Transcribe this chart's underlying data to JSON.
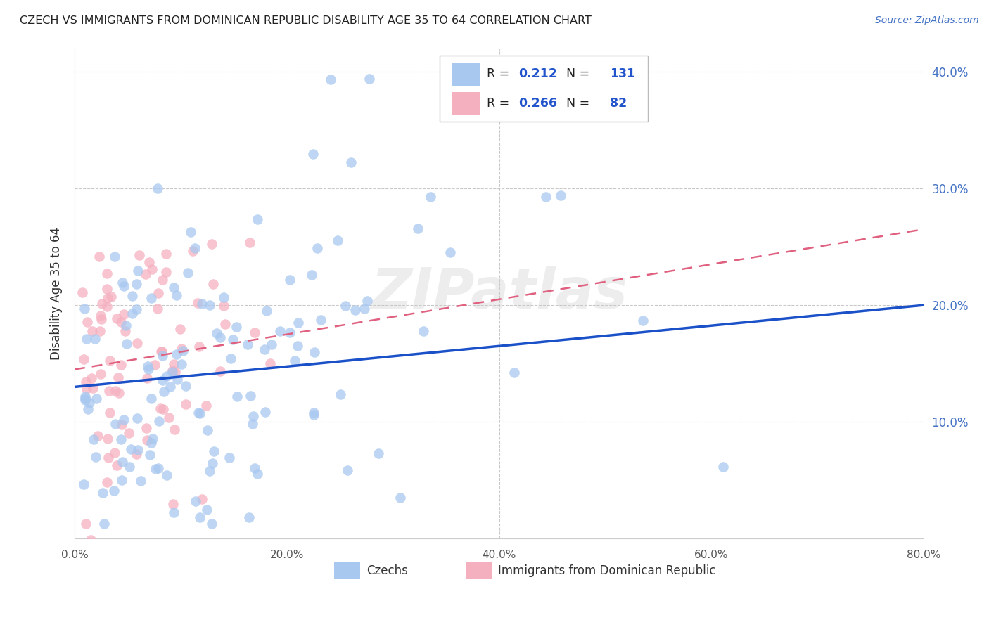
{
  "title": "CZECH VS IMMIGRANTS FROM DOMINICAN REPUBLIC DISABILITY AGE 35 TO 64 CORRELATION CHART",
  "source": "Source: ZipAtlas.com",
  "ylabel": "Disability Age 35 to 64",
  "xlim": [
    0.0,
    0.8
  ],
  "ylim": [
    0.0,
    0.42
  ],
  "xticks": [
    0.0,
    0.2,
    0.4,
    0.6,
    0.8
  ],
  "yticks": [
    0.1,
    0.2,
    0.3,
    0.4
  ],
  "xticklabels": [
    "0.0%",
    "20.0%",
    "40.0%",
    "60.0%",
    "80.0%"
  ],
  "yticklabels": [
    "10.0%",
    "20.0%",
    "30.0%",
    "40.0%"
  ],
  "blue_color": "#A8C8F0",
  "pink_color": "#F5B0C0",
  "blue_line_color": "#1A50C8",
  "pink_line_color": "#E06080",
  "R_blue": 0.212,
  "N_blue": 131,
  "R_pink": 0.266,
  "N_pink": 82,
  "watermark": "ZIPatlas",
  "background_color": "#FFFFFF",
  "grid_color": "#BBBBBB",
  "title_color": "#222222",
  "right_tick_color": "#4472C4",
  "blue_line_start_y": 0.13,
  "blue_line_end_y": 0.2,
  "pink_line_start_y": 0.145,
  "pink_line_end_y": 0.265
}
